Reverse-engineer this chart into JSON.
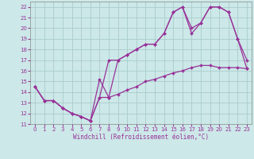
{
  "xlabel": "Windchill (Refroidissement éolien,°C)",
  "xlim": [
    -0.5,
    23.5
  ],
  "ylim": [
    11,
    22.5
  ],
  "xticks": [
    0,
    1,
    2,
    3,
    4,
    5,
    6,
    7,
    8,
    9,
    10,
    11,
    12,
    13,
    14,
    15,
    16,
    17,
    18,
    19,
    20,
    21,
    22,
    23
  ],
  "yticks": [
    11,
    12,
    13,
    14,
    15,
    16,
    17,
    18,
    19,
    20,
    21,
    22
  ],
  "line_color": "#993399",
  "bg_color": "#cce8e8",
  "grid_color": "#aacccc",
  "line1_x": [
    0,
    1,
    2,
    3,
    4,
    5,
    6,
    7,
    8,
    9,
    10,
    11,
    12,
    13,
    14,
    15,
    16,
    17,
    18,
    19,
    20,
    21,
    22,
    23
  ],
  "line1_y": [
    14.5,
    13.2,
    13.2,
    12.5,
    12.0,
    11.7,
    11.3,
    15.2,
    13.5,
    17.0,
    17.5,
    18.0,
    18.5,
    18.5,
    19.5,
    21.5,
    22.0,
    19.5,
    20.5,
    22.0,
    22.0,
    21.5,
    19.0,
    17.0
  ],
  "line2_x": [
    0,
    1,
    2,
    3,
    4,
    5,
    6,
    7,
    8,
    9,
    10,
    11,
    12,
    13,
    14,
    15,
    16,
    17,
    18,
    19,
    20,
    21,
    22,
    23
  ],
  "line2_y": [
    14.5,
    13.2,
    13.2,
    12.5,
    12.0,
    11.7,
    11.3,
    13.5,
    17.0,
    17.0,
    17.5,
    18.0,
    18.5,
    18.5,
    19.5,
    21.5,
    22.0,
    20.0,
    20.5,
    22.0,
    22.0,
    21.5,
    19.0,
    16.2
  ],
  "line3_x": [
    0,
    1,
    2,
    3,
    4,
    5,
    6,
    7,
    8,
    9,
    10,
    11,
    12,
    13,
    14,
    15,
    16,
    17,
    18,
    19,
    20,
    21,
    22,
    23
  ],
  "line3_y": [
    14.5,
    13.2,
    13.2,
    12.5,
    12.0,
    11.7,
    11.3,
    13.5,
    13.5,
    13.8,
    14.2,
    14.5,
    15.0,
    15.2,
    15.5,
    15.8,
    16.0,
    16.3,
    16.5,
    16.5,
    16.3,
    16.3,
    16.3,
    16.2
  ]
}
